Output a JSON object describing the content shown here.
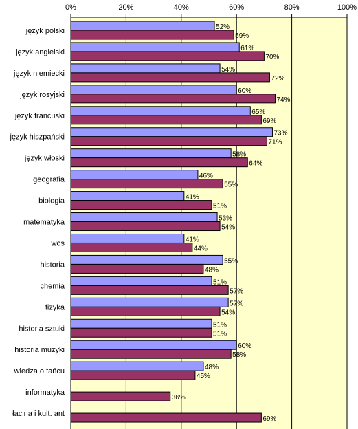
{
  "chart_data": {
    "type": "bar",
    "orientation": "horizontal",
    "categories": [
      "język polski",
      "język angielski",
      "język niemiecki",
      "język rosyjski",
      "język francuski",
      "język hiszpański",
      "język włoski",
      "geografia",
      "biologia",
      "matematyka",
      "wos",
      "historia",
      "chemia",
      "fizyka",
      "historia sztuki",
      "historia muzyki",
      "wiedza o tańcu",
      "informatyka",
      "łacina i kult. ant"
    ],
    "series": [
      {
        "color": "#9999ff",
        "values": [
          52,
          61,
          54,
          60,
          65,
          73,
          58,
          46,
          41,
          53,
          41,
          55,
          51,
          57,
          51,
          60,
          48,
          null,
          null
        ],
        "labels": [
          "52%",
          "61%",
          "54%",
          "60%",
          "65%",
          "73%",
          "58%",
          "46%",
          "41%",
          "53%",
          "41%",
          "55%",
          "51%",
          "57%",
          "51%",
          "60%",
          "48%",
          "",
          ""
        ]
      },
      {
        "color": "#993366",
        "values": [
          59,
          70,
          72,
          74,
          69,
          71,
          64,
          55,
          51,
          54,
          44,
          48,
          57,
          54,
          51,
          58,
          45,
          36,
          69
        ],
        "labels": [
          "59%",
          "70%",
          "72%",
          "74%",
          "69%",
          "71%",
          "64%",
          "55%",
          "51%",
          "54%",
          "44%",
          "48%",
          "57%",
          "54%",
          "51%",
          "58%",
          "45%",
          "36%",
          "69%"
        ]
      }
    ],
    "xlim": [
      0,
      100
    ],
    "x_ticks": [
      "0%",
      "20%",
      "40%",
      "60%",
      "80%",
      "100%"
    ],
    "x_axis_position": "top",
    "gridlines": "vertical",
    "legend": "none",
    "colors": {
      "plot_background": "#ffffcc",
      "gridline": "#000000"
    }
  }
}
